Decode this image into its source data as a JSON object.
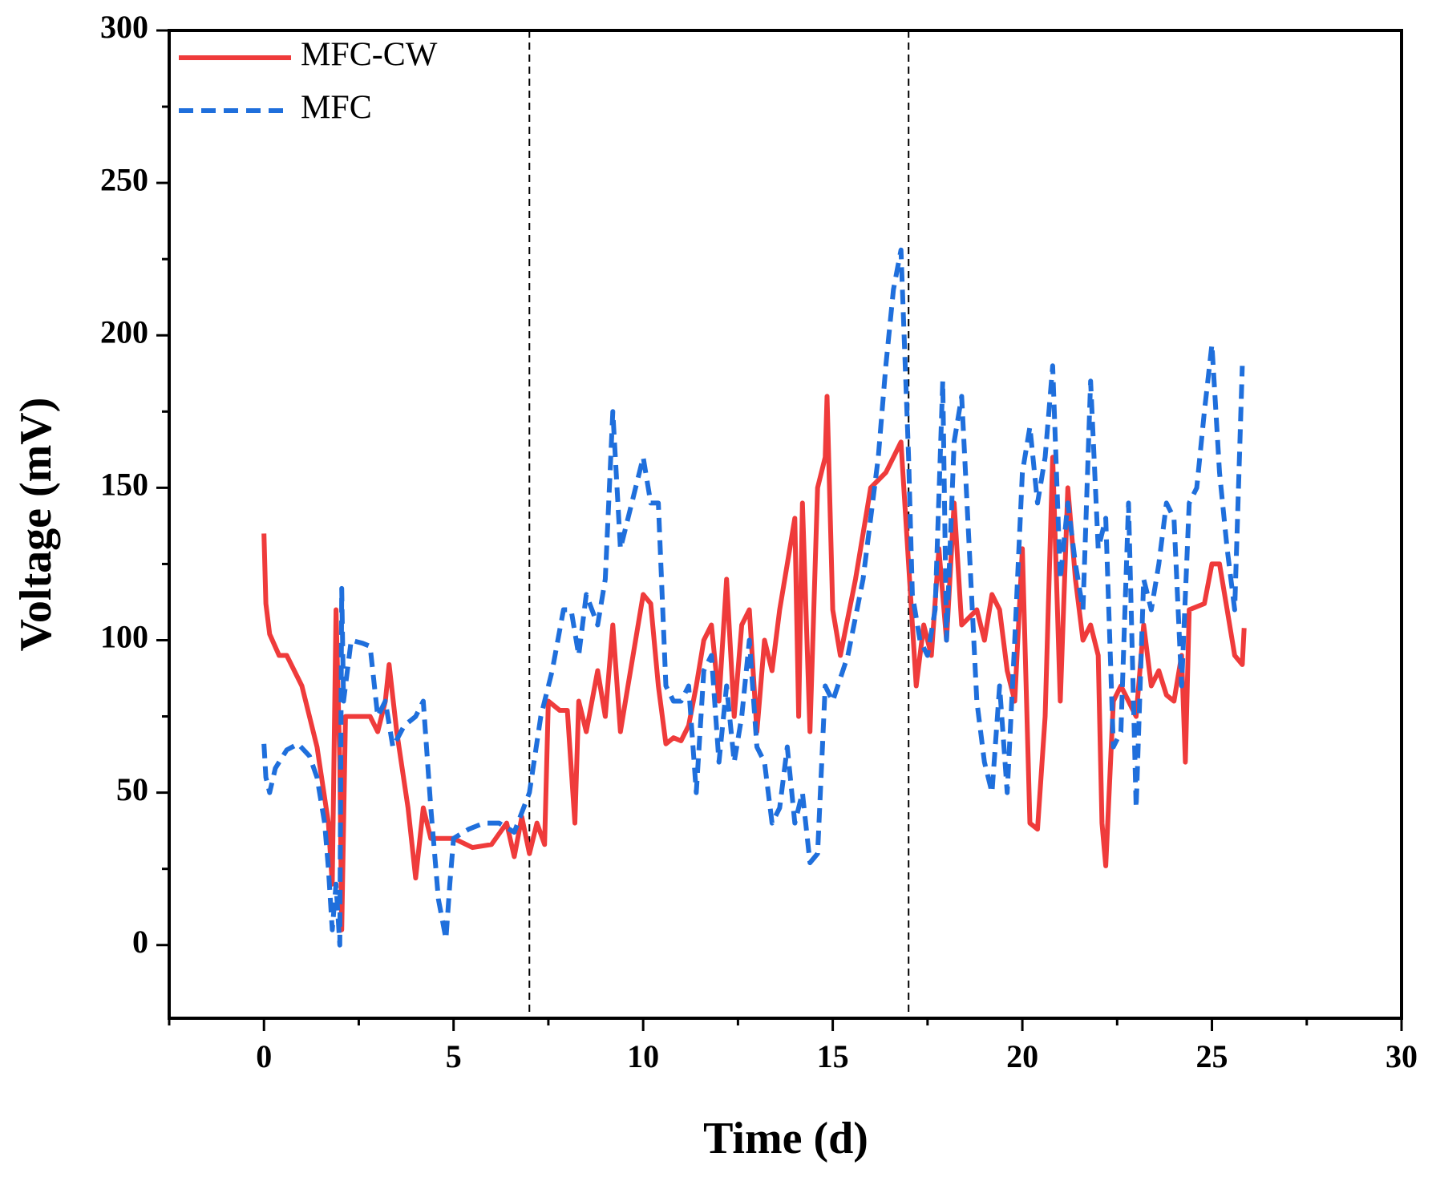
{
  "chart_data": {
    "type": "line",
    "xlabel": "Time (d)",
    "ylabel": "Voltage (mV)",
    "xlim": [
      -2.5,
      30
    ],
    "ylim": [
      -24,
      300
    ],
    "xticks": [
      0,
      5,
      10,
      15,
      20,
      25,
      30
    ],
    "yticks": [
      0,
      50,
      100,
      150,
      200,
      250,
      300
    ],
    "vlines": [
      7,
      17
    ],
    "legend": "upper left",
    "series": [
      {
        "name": "MFC-CW",
        "color": "#ef3b3b",
        "dash": "solid",
        "x": [
          0,
          0.05,
          0.15,
          0.4,
          0.6,
          1.0,
          1.4,
          1.7,
          1.8,
          1.9,
          2.0,
          2.05,
          2.15,
          2.5,
          2.8,
          3.0,
          3.2,
          3.3,
          3.5,
          3.8,
          4.0,
          4.2,
          4.4,
          5,
          5.5,
          6,
          6.4,
          6.6,
          6.8,
          7,
          7.2,
          7.4,
          7.5,
          7.8,
          8.0,
          8.2,
          8.3,
          8.5,
          8.8,
          9.0,
          9.2,
          9.4,
          9.6,
          9.8,
          10.0,
          10.2,
          10.4,
          10.6,
          10.8,
          11.0,
          11.2,
          11.4,
          11.6,
          11.8,
          12.0,
          12.2,
          12.4,
          12.6,
          12.8,
          13.0,
          13.2,
          13.4,
          13.6,
          13.8,
          14.0,
          14.1,
          14.2,
          14.4,
          14.6,
          14.8,
          14.85,
          15.0,
          15.2,
          15.6,
          16.0,
          16.4,
          16.8,
          17.0,
          17.2,
          17.4,
          17.6,
          17.8,
          18.0,
          18.2,
          18.4,
          18.8,
          19.0,
          19.2,
          19.4,
          19.6,
          19.8,
          20.0,
          20.2,
          20.4,
          20.6,
          20.8,
          21.0,
          21.2,
          21.4,
          21.6,
          21.8,
          22.0,
          22.1,
          22.2,
          22.4,
          22.6,
          22.8,
          23.0,
          23.2,
          23.4,
          23.6,
          23.8,
          24.0,
          24.2,
          24.3,
          24.4,
          24.8,
          25.0,
          25.2,
          25.4,
          25.6,
          25.8,
          25.85
        ],
        "values": [
          135,
          112,
          102,
          95,
          95,
          85,
          65,
          40,
          20,
          110,
          60,
          5,
          75,
          75,
          75,
          70,
          80,
          92,
          70,
          45,
          22,
          45,
          35,
          35,
          32,
          33,
          40,
          29,
          42,
          30,
          40,
          33,
          80,
          77,
          77,
          40,
          80,
          70,
          90,
          75,
          105,
          70,
          85,
          100,
          115,
          112,
          85,
          66,
          68,
          67,
          72,
          85,
          100,
          105,
          80,
          120,
          75,
          105,
          110,
          70,
          100,
          90,
          110,
          125,
          140,
          75,
          145,
          70,
          150,
          160,
          180,
          110,
          95,
          120,
          150,
          155,
          165,
          125,
          85,
          105,
          95,
          130,
          100,
          145,
          105,
          110,
          100,
          115,
          110,
          90,
          80,
          130,
          40,
          38,
          75,
          160,
          80,
          150,
          120,
          100,
          105,
          95,
          40,
          26,
          80,
          85,
          80,
          75,
          105,
          85,
          90,
          82,
          80,
          95,
          60,
          110,
          112,
          125,
          125,
          110,
          95,
          92,
          104
        ]
      },
      {
        "name": "MFC",
        "color": "#1f6fdc",
        "dash": "dashed",
        "x": [
          0,
          0.05,
          0.15,
          0.3,
          0.6,
          0.9,
          1.2,
          1.4,
          1.6,
          1.7,
          1.8,
          1.9,
          2.0,
          2.05,
          2.1,
          2.3,
          2.6,
          2.8,
          3.0,
          3.2,
          3.4,
          3.7,
          4.0,
          4.2,
          4.4,
          4.6,
          4.8,
          4.9,
          5.0,
          5.4,
          5.8,
          6.2,
          6.6,
          7.0,
          7.3,
          7.6,
          7.9,
          8.1,
          8.3,
          8.5,
          8.8,
          9.0,
          9.2,
          9.4,
          9.8,
          10.0,
          10.2,
          10.4,
          10.6,
          10.8,
          11.0,
          11.2,
          11.4,
          11.6,
          11.8,
          12.0,
          12.2,
          12.4,
          12.6,
          12.8,
          13.0,
          13.2,
          13.4,
          13.6,
          13.8,
          14.0,
          14.2,
          14.4,
          14.6,
          14.8,
          15.0,
          15.4,
          15.8,
          16.0,
          16.2,
          16.4,
          16.6,
          16.8,
          17.0,
          17.1,
          17.3,
          17.5,
          17.7,
          17.9,
          18.0,
          18.2,
          18.4,
          18.6,
          18.8,
          19.0,
          19.2,
          19.4,
          19.6,
          19.8,
          20.0,
          20.2,
          20.4,
          20.6,
          20.8,
          21.0,
          21.2,
          21.4,
          21.6,
          21.8,
          22.0,
          22.2,
          22.4,
          22.6,
          22.8,
          23.0,
          23.2,
          23.4,
          23.6,
          23.8,
          24.0,
          24.2,
          24.4,
          24.6,
          24.8,
          25.0,
          25.2,
          25.4,
          25.6,
          25.8
        ],
        "values": [
          66,
          55,
          50,
          58,
          64,
          66,
          62,
          55,
          40,
          25,
          5,
          20,
          0,
          117,
          80,
          100,
          99,
          98,
          75,
          80,
          65,
          72,
          75,
          80,
          45,
          15,
          2,
          20,
          35,
          38,
          40,
          40,
          37,
          50,
          75,
          90,
          110,
          110,
          95,
          115,
          105,
          120,
          175,
          130,
          150,
          160,
          145,
          145,
          85,
          80,
          80,
          85,
          50,
          90,
          95,
          60,
          85,
          60,
          75,
          100,
          65,
          60,
          40,
          45,
          65,
          40,
          50,
          27,
          30,
          85,
          80,
          95,
          120,
          140,
          160,
          190,
          215,
          228,
          160,
          115,
          100,
          95,
          110,
          185,
          100,
          165,
          180,
          130,
          80,
          60,
          50,
          85,
          50,
          100,
          155,
          170,
          145,
          160,
          190,
          120,
          145,
          125,
          110,
          185,
          130,
          140,
          65,
          70,
          145,
          45,
          120,
          110,
          125,
          145,
          140,
          85,
          145,
          150,
          175,
          197,
          155,
          130,
          110,
          190
        ]
      }
    ]
  }
}
